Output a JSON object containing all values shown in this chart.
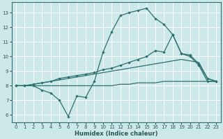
{
  "xlabel": "Humidex (Indice chaleur)",
  "bg_color": "#cce8e8",
  "grid_color": "#ffffff",
  "line_color": "#2d7070",
  "xlim": [
    -0.5,
    23.5
  ],
  "ylim": [
    5.5,
    13.7
  ],
  "xticks": [
    0,
    1,
    2,
    3,
    4,
    5,
    6,
    7,
    8,
    9,
    10,
    11,
    12,
    13,
    14,
    15,
    16,
    17,
    18,
    19,
    20,
    21,
    22,
    23
  ],
  "yticks": [
    6,
    7,
    8,
    9,
    10,
    11,
    12,
    13
  ],
  "line1_x": [
    0,
    1,
    2,
    3,
    4,
    5,
    6,
    7,
    8,
    9,
    10,
    11,
    12,
    13,
    14,
    15,
    16,
    17,
    18,
    19,
    20,
    21,
    22,
    23
  ],
  "line1_y": [
    8.0,
    8.0,
    8.0,
    7.7,
    7.5,
    7.0,
    5.9,
    7.3,
    7.2,
    8.3,
    10.3,
    11.7,
    12.8,
    13.0,
    13.15,
    13.3,
    12.6,
    12.2,
    11.5,
    10.2,
    10.0,
    9.4,
    8.3,
    8.3
  ],
  "line2_x": [
    0,
    1,
    2,
    3,
    4,
    5,
    6,
    7,
    8,
    9,
    10,
    11,
    12,
    13,
    14,
    15,
    16,
    17,
    18,
    19,
    20,
    21,
    22,
    23
  ],
  "line2_y": [
    8.0,
    8.0,
    8.1,
    8.2,
    8.3,
    8.5,
    8.6,
    8.7,
    8.8,
    8.9,
    9.1,
    9.2,
    9.4,
    9.6,
    9.8,
    10.0,
    10.4,
    10.3,
    11.5,
    10.2,
    10.1,
    9.5,
    8.5,
    8.3
  ],
  "line3_x": [
    0,
    1,
    2,
    3,
    4,
    5,
    6,
    7,
    8,
    9,
    10,
    11,
    12,
    13,
    14,
    15,
    16,
    17,
    18,
    19,
    20,
    21,
    22,
    23
  ],
  "line3_y": [
    8.0,
    8.0,
    8.1,
    8.2,
    8.3,
    8.4,
    8.5,
    8.6,
    8.7,
    8.8,
    8.9,
    9.0,
    9.1,
    9.2,
    9.3,
    9.4,
    9.5,
    9.6,
    9.7,
    9.8,
    9.7,
    9.6,
    8.5,
    8.3
  ],
  "line4_x": [
    0,
    1,
    2,
    3,
    4,
    5,
    6,
    7,
    8,
    9,
    10,
    11,
    12,
    13,
    14,
    15,
    16,
    17,
    18,
    19,
    20,
    21,
    22,
    23
  ],
  "line4_y": [
    8.0,
    8.0,
    8.0,
    8.0,
    8.0,
    8.0,
    8.0,
    8.0,
    8.0,
    8.0,
    8.0,
    8.0,
    8.1,
    8.1,
    8.2,
    8.2,
    8.2,
    8.3,
    8.3,
    8.3,
    8.3,
    8.3,
    8.3,
    8.3
  ]
}
